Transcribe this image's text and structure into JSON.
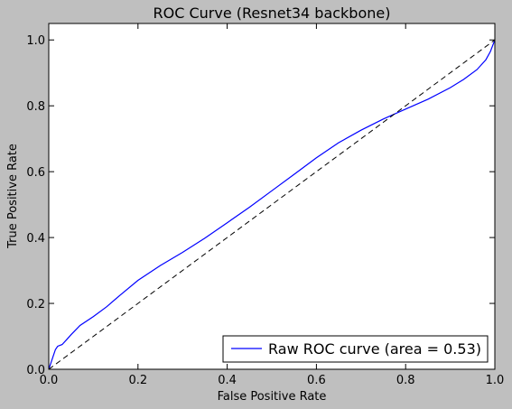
{
  "chart_data": {
    "type": "line",
    "title": "ROC Curve (Resnet34 backbone)",
    "xlabel": "False Positive Rate",
    "ylabel": "True Positive Rate",
    "xlim": [
      0,
      1
    ],
    "ylim": [
      0,
      1.05
    ],
    "xticks": [
      0.0,
      0.2,
      0.4,
      0.6,
      0.8,
      1.0
    ],
    "xtick_labels": [
      "0.0",
      "0.2",
      "0.4",
      "0.6",
      "0.8",
      "1.0"
    ],
    "yticks": [
      0.0,
      0.2,
      0.4,
      0.6,
      0.8,
      1.0
    ],
    "ytick_labels": [
      "0.0",
      "0.2",
      "0.4",
      "0.6",
      "0.8",
      "1.0"
    ],
    "grid": false,
    "legend_position": "lower-right",
    "series": [
      {
        "name": "Raw ROC curve (area = 0.53)",
        "color": "#0000ff",
        "style": "solid",
        "x": [
          0.0,
          0.005,
          0.01,
          0.015,
          0.02,
          0.03,
          0.04,
          0.05,
          0.07,
          0.1,
          0.13,
          0.16,
          0.2,
          0.25,
          0.3,
          0.35,
          0.4,
          0.45,
          0.5,
          0.55,
          0.6,
          0.65,
          0.7,
          0.75,
          0.8,
          0.85,
          0.9,
          0.93,
          0.96,
          0.98,
          0.99,
          1.0
        ],
        "y": [
          0.0,
          0.02,
          0.04,
          0.06,
          0.07,
          0.075,
          0.09,
          0.105,
          0.133,
          0.16,
          0.19,
          0.225,
          0.27,
          0.315,
          0.355,
          0.398,
          0.445,
          0.492,
          0.542,
          0.592,
          0.642,
          0.688,
          0.726,
          0.76,
          0.79,
          0.82,
          0.855,
          0.88,
          0.91,
          0.94,
          0.965,
          1.0
        ]
      },
      {
        "name": "",
        "color": "#000000",
        "style": "dashed",
        "x": [
          0.0,
          1.0
        ],
        "y": [
          0.0,
          1.0
        ]
      }
    ]
  }
}
